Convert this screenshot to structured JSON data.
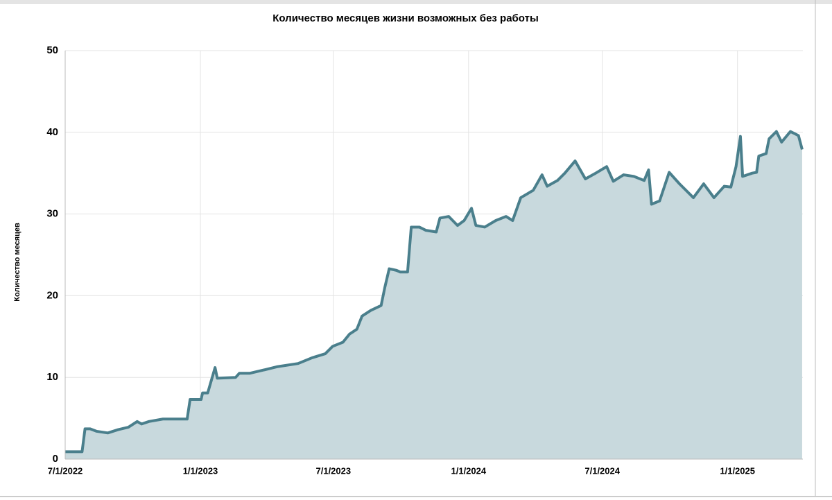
{
  "chart_data": {
    "type": "area",
    "title": "Количество месяцев жизни возможных без работы",
    "y_label": "Количество месяцев",
    "x": [
      "2022-07-01",
      "2022-07-24",
      "2022-07-28",
      "2022-08-04",
      "2022-08-13",
      "2022-08-28",
      "2022-09-11",
      "2022-09-25",
      "2022-10-07",
      "2022-10-13",
      "2022-10-23",
      "2022-11-11",
      "2022-12-14",
      "2022-12-18",
      "2023-01-02",
      "2023-01-04",
      "2023-01-11",
      "2023-01-21",
      "2023-01-24",
      "2023-02-18",
      "2023-02-23",
      "2023-03-09",
      "2023-03-28",
      "2023-04-15",
      "2023-05-14",
      "2023-06-02",
      "2023-06-20",
      "2023-06-30",
      "2023-07-14",
      "2023-07-23",
      "2023-08-02",
      "2023-08-09",
      "2023-08-21",
      "2023-09-04",
      "2023-09-09",
      "2023-09-15",
      "2023-09-25",
      "2023-09-30",
      "2023-10-10",
      "2023-10-15",
      "2023-10-26",
      "2023-11-04",
      "2023-11-18",
      "2023-11-23",
      "2023-12-05",
      "2023-12-17",
      "2023-12-26",
      "2024-01-05",
      "2024-01-11",
      "2024-01-23",
      "2024-02-07",
      "2024-02-21",
      "2024-03-01",
      "2024-03-12",
      "2024-03-29",
      "2024-04-10",
      "2024-04-17",
      "2024-05-01",
      "2024-05-11",
      "2024-05-25",
      "2024-06-08",
      "2024-06-22",
      "2024-07-07",
      "2024-07-16",
      "2024-07-30",
      "2024-08-13",
      "2024-08-27",
      "2024-09-02",
      "2024-09-06",
      "2024-09-17",
      "2024-09-30",
      "2024-10-14",
      "2024-11-02",
      "2024-11-16",
      "2024-11-30",
      "2024-12-14",
      "2024-12-23",
      "2024-12-30",
      "2025-01-05",
      "2025-01-08",
      "2025-01-21",
      "2025-01-27",
      "2025-01-30",
      "2025-02-09",
      "2025-02-13",
      "2025-02-23",
      "2025-03-02",
      "2025-03-14",
      "2025-03-25",
      "2025-03-30"
    ],
    "series": [
      {
        "name": "Количество месяцев",
        "color": "#4a7f8c",
        "fill": "#c8d9dd",
        "values": [
          0.9,
          0.9,
          3.7,
          3.7,
          3.4,
          3.2,
          3.6,
          3.9,
          4.6,
          4.3,
          4.6,
          4.9,
          4.9,
          7.3,
          7.3,
          8.1,
          8.1,
          11.2,
          9.9,
          10.0,
          10.5,
          10.5,
          10.9,
          11.3,
          11.7,
          12.4,
          12.9,
          13.8,
          14.3,
          15.3,
          15.9,
          17.5,
          18.2,
          18.8,
          21.0,
          23.3,
          23.1,
          22.9,
          22.9,
          28.4,
          28.4,
          28.0,
          27.8,
          29.5,
          29.7,
          28.6,
          29.2,
          30.7,
          28.6,
          28.4,
          29.2,
          29.7,
          29.2,
          32.0,
          32.9,
          34.8,
          33.4,
          34.1,
          35.0,
          36.5,
          34.3,
          35.0,
          35.8,
          34.0,
          34.8,
          34.6,
          34.1,
          35.4,
          31.2,
          31.6,
          35.1,
          33.7,
          32.0,
          33.7,
          32.0,
          33.4,
          33.3,
          35.8,
          39.5,
          34.6,
          35.0,
          35.1,
          37.1,
          37.4,
          39.2,
          40.1,
          38.8,
          40.1,
          39.6,
          37.9
        ]
      }
    ],
    "xlim": [
      "2022-07-01",
      "2025-03-31"
    ],
    "xticks": [
      {
        "value": "2022-07-01",
        "label": "7/1/2022"
      },
      {
        "value": "2023-01-01",
        "label": "1/1/2023"
      },
      {
        "value": "2023-07-01",
        "label": "7/1/2023"
      },
      {
        "value": "2024-01-01",
        "label": "1/1/2024"
      },
      {
        "value": "2024-07-01",
        "label": "7/1/2024"
      },
      {
        "value": "2025-01-01",
        "label": "1/1/2025"
      }
    ],
    "ylim": [
      0,
      50
    ],
    "yticks": [
      0,
      10,
      20,
      30,
      40,
      50
    ],
    "grid": true
  }
}
